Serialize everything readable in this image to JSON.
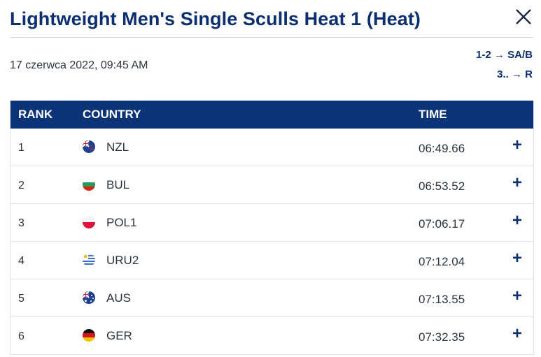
{
  "header": {
    "title": "Lightweight Men's Single Sculls Heat 1 (Heat)",
    "date": "17 czerwca 2022, 09:45 AM",
    "rules": [
      "1-2 → SA/B",
      "3.. → R"
    ]
  },
  "table": {
    "columns": {
      "rank": "RANK",
      "country": "COUNTRY",
      "time": "TIME"
    },
    "rows": [
      {
        "rank": "1",
        "country": "NZL",
        "time": "06:49.66",
        "flag": "nzl-flag-icon"
      },
      {
        "rank": "2",
        "country": "BUL",
        "time": "06:53.52",
        "flag": "bul-flag-icon"
      },
      {
        "rank": "3",
        "country": "POL1",
        "time": "07:06.17",
        "flag": "pol-flag-icon"
      },
      {
        "rank": "4",
        "country": "URU2",
        "time": "07:12.04",
        "flag": "uru-flag-icon"
      },
      {
        "rank": "5",
        "country": "AUS",
        "time": "07:13.55",
        "flag": "aus-flag-icon"
      },
      {
        "rank": "6",
        "country": "GER",
        "time": "07:32.35",
        "flag": "ger-flag-icon"
      }
    ],
    "expand_symbol": "+"
  },
  "colors": {
    "brand_navy": "#0b3478",
    "title": "#0c2f6f"
  }
}
